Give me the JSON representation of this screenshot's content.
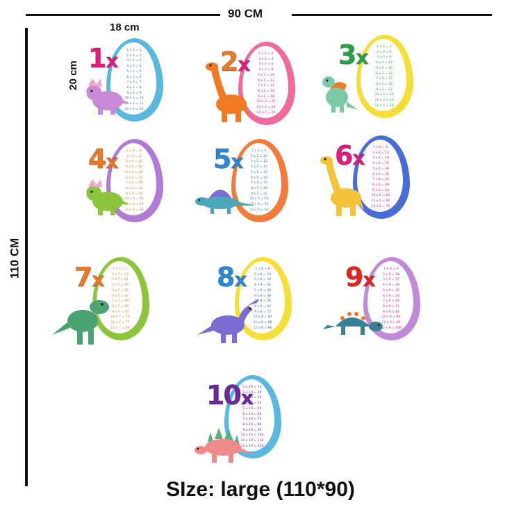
{
  "dimensions": {
    "width_label": "90 CM",
    "height_label": "110 CM",
    "card_width_label": "18 cm",
    "card_height_label": "20 cm"
  },
  "caption": "SIze: large (110*90)",
  "cards": [
    {
      "number": "1",
      "x_label": "x",
      "number_color": "#e8197f",
      "x_color": "#e8197f",
      "egg_color": "#5ab8e0",
      "table_color": "#2a73c8",
      "dino": "triceratops",
      "dino_color": "#c98bd6",
      "rows": [
        "1 x 1 = 1",
        "2 x 1 = 2",
        "3 x 1 = 3",
        "4 x 1 = 4",
        "5 x 1 = 5",
        "6 x 1 = 6",
        "7 x 1 = 7",
        "8 x 1 = 8",
        "9 x 1 = 9",
        "10 x 1 = 10",
        "11 x 1 = 11",
        "12 x 1 = 12"
      ]
    },
    {
      "number": "2",
      "x_label": "x",
      "number_color": "#f07a24",
      "x_color": "#e8197f",
      "egg_color": "#f06b9c",
      "table_color": "#e8197f",
      "dino": "brachiosaurus",
      "dino_color": "#f07a24",
      "rows": [
        "1 x 2 = 2",
        "2 x 2 = 4",
        "3 x 2 = 6",
        "4 x 2 = 8",
        "5 x 2 = 10",
        "6 x 2 = 12",
        "7 x 2 = 14",
        "8 x 2 = 16",
        "9 x 2 = 18",
        "10 x 2 = 20",
        "11 x 2 = 22",
        "12 x 2 = 24"
      ]
    },
    {
      "number": "3",
      "x_label": "x",
      "number_color": "#2aa24a",
      "x_color": "#2aa24a",
      "egg_color": "#f6de38",
      "table_color": "#2aa24a",
      "dino": "spinosaurus",
      "dino_color": "#7cc9a6",
      "rows": [
        "1 x 3 = 3",
        "2 x 3 = 6",
        "3 x 3 = 9",
        "4 x 3 = 12",
        "5 x 3 = 15",
        "6 x 3 = 18",
        "7 x 3 = 21",
        "8 x 3 = 24",
        "9 x 3 = 27",
        "10 x 3 = 30",
        "11 x 3 = 33",
        "12 x 3 = 36"
      ]
    },
    {
      "number": "4",
      "x_label": "x",
      "number_color": "#f07a24",
      "x_color": "#f07a24",
      "egg_color": "#b07ad6",
      "table_color": "#f07a24",
      "dino": "triceratops",
      "dino_color": "#8cc43c",
      "rows": [
        "1 x 4 = 4",
        "2 x 4 = 8",
        "3 x 4 = 12",
        "4 x 4 = 16",
        "5 x 4 = 20",
        "6 x 4 = 24",
        "7 x 4 = 28",
        "8 x 4 = 32",
        "9 x 4 = 36",
        "10 x 4 = 40",
        "11 x 4 = 44",
        "12 x 4 = 48"
      ]
    },
    {
      "number": "5",
      "x_label": "x",
      "number_color": "#2a8ad6",
      "x_color": "#2a8ad6",
      "egg_color": "#f27a3a",
      "table_color": "#2a73c8",
      "dino": "dimetrodon",
      "dino_color": "#4aa7b8",
      "rows": [
        "1 x 5 = 5",
        "2 x 5 = 10",
        "3 x 5 = 15",
        "4 x 5 = 20",
        "5 x 5 = 25",
        "6 x 5 = 30",
        "7 x 5 = 35",
        "8 x 5 = 40",
        "9 x 5 = 45",
        "10 x 5 = 50",
        "11 x 5 = 55",
        "12 x 5 = 60"
      ]
    },
    {
      "number": "6",
      "x_label": "x",
      "number_color": "#e8197f",
      "x_color": "#e8197f",
      "egg_color": "#4a6cd6",
      "table_color": "#e8197f",
      "dino": "brachiosaurus",
      "dino_color": "#f5c33b",
      "rows": [
        "1 x 6 = 6",
        "2 x 6 = 12",
        "3 x 6 = 18",
        "4 x 6 = 24",
        "5 x 6 = 30",
        "6 x 6 = 36",
        "7 x 6 = 42",
        "8 x 6 = 48",
        "9 x 6 = 54",
        "10 x 6 = 60",
        "11 x 6 = 66",
        "12 x 6 = 72"
      ]
    },
    {
      "number": "7",
      "x_label": "x",
      "number_color": "#f07a24",
      "x_color": "#f07a24",
      "egg_color": "#8cc43c",
      "table_color": "#f07a24",
      "dino": "t-rex",
      "dino_color": "#4aa370",
      "rows": [
        "1 x 7 = 7",
        "2 x 7 = 14",
        "3 x 7 = 21",
        "4 x 7 = 28",
        "5 x 7 = 35",
        "6 x 7 = 42",
        "7 x 7 = 49",
        "8 x 7 = 56",
        "9 x 7 = 63",
        "10 x 7 = 70",
        "11 x 7 = 77",
        "12 x 7 = 84"
      ]
    },
    {
      "number": "8",
      "x_label": "x",
      "number_color": "#2a8ad6",
      "x_color": "#2a8ad6",
      "egg_color": "#f6de38",
      "table_color": "#2a73c8",
      "dino": "parasaurolophus",
      "dino_color": "#7a6cd0",
      "rows": [
        "1 x 8 = 8",
        "2 x 8 = 16",
        "3 x 8 = 24",
        "4 x 8 = 32",
        "5 x 8 = 40",
        "6 x 8 = 48",
        "7 x 8 = 56",
        "8 x 8 = 64",
        "9 x 8 = 72",
        "10 x 8 = 80",
        "11 x 8 = 88",
        "12 x 8 = 96"
      ]
    },
    {
      "number": "9",
      "x_label": "x",
      "number_color": "#e8261f",
      "x_color": "#e8261f",
      "egg_color": "#c08ad8",
      "table_color": "#e8197f",
      "dino": "ankylosaurus",
      "dino_color": "#3a7f96",
      "rows": [
        "1 x 9 = 9",
        "2 x 9 = 18",
        "3 x 9 = 27",
        "4 x 9 = 36",
        "5 x 9 = 45",
        "6 x 9 = 54",
        "7 x 9 = 63",
        "8 x 9 = 72",
        "9 x 9 = 81",
        "10 x 9 = 90",
        "11 x 9 = 99",
        "12 x 9 = 108"
      ]
    },
    {
      "number": "10",
      "x_label": "x",
      "number_color": "#6a2a9c",
      "x_color": "#6a2a9c",
      "egg_color": "#5ab8e0",
      "table_color": "#6a2a9c",
      "dino": "stegosaurus",
      "dino_color": "#f08a8a",
      "rows": [
        "1 x 10 = 10",
        "2 x 10 = 20",
        "3 x 10 = 30",
        "4 x 10 = 40",
        "5 x 10 = 50",
        "6 x 10 = 60",
        "7 x 10 = 70",
        "8 x 10 = 80",
        "9 x 10 = 90",
        "10 x 10 = 100",
        "11 x 10 = 110",
        "12 x 10 = 120"
      ]
    }
  ]
}
